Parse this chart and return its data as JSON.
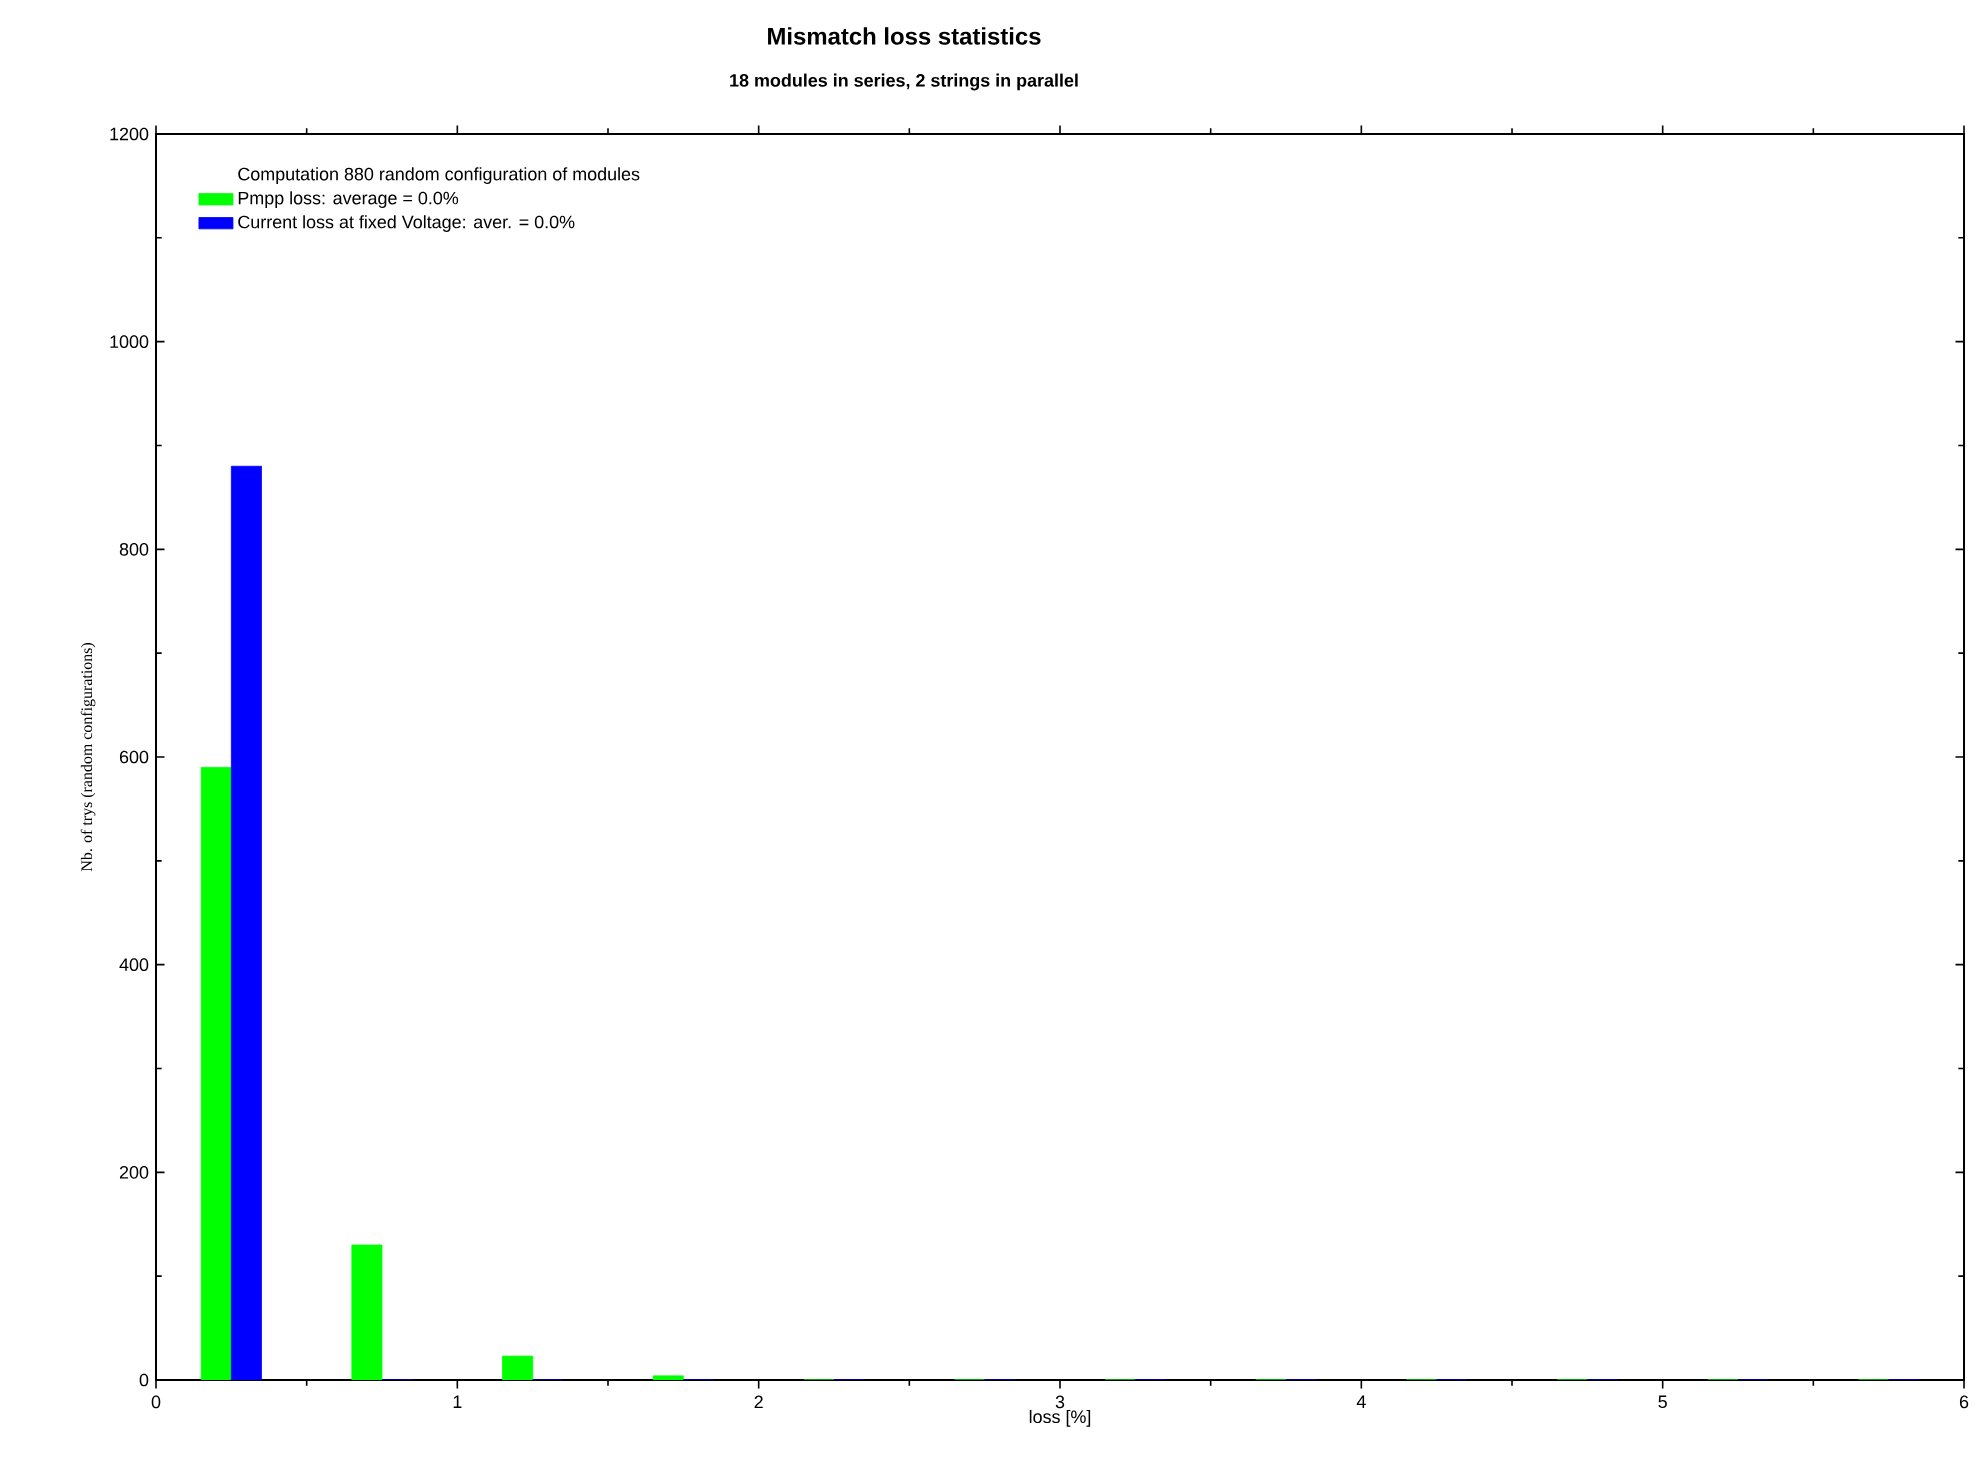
{
  "chart_data": {
    "type": "bar",
    "title": "Mismatch loss statistics",
    "subtitle": "18 modules in series, 2 strings in parallel",
    "xlabel": "loss [%]",
    "ylabel": "Nb. of trys (random configurations)",
    "legend_title": "Computation 880 random configuration of modules",
    "x": [
      0.25,
      0.75,
      1.25,
      1.75,
      2.25,
      2.75,
      3.25,
      3.75,
      4.25,
      4.75,
      5.25,
      5.75
    ],
    "series": [
      {
        "name": "Pmpp loss: average = 0.0%",
        "color": "#00ff00",
        "values": [
          590,
          130,
          23,
          4,
          0,
          0,
          0,
          0,
          0,
          0,
          0,
          0
        ]
      },
      {
        "name": "Current loss at fixed Voltage: aver. = 0.0%",
        "color": "#0000ff",
        "values": [
          880,
          0,
          0,
          0,
          0,
          0,
          0,
          0,
          0,
          0,
          0,
          0
        ]
      }
    ],
    "xlim": [
      0,
      6
    ],
    "xticks": [
      0,
      1,
      2,
      3,
      4,
      5,
      6
    ],
    "ylim": [
      0,
      1200
    ],
    "yticks": [
      0,
      200,
      400,
      600,
      800,
      1000,
      1200
    ],
    "grid": false,
    "legend": "top left"
  }
}
